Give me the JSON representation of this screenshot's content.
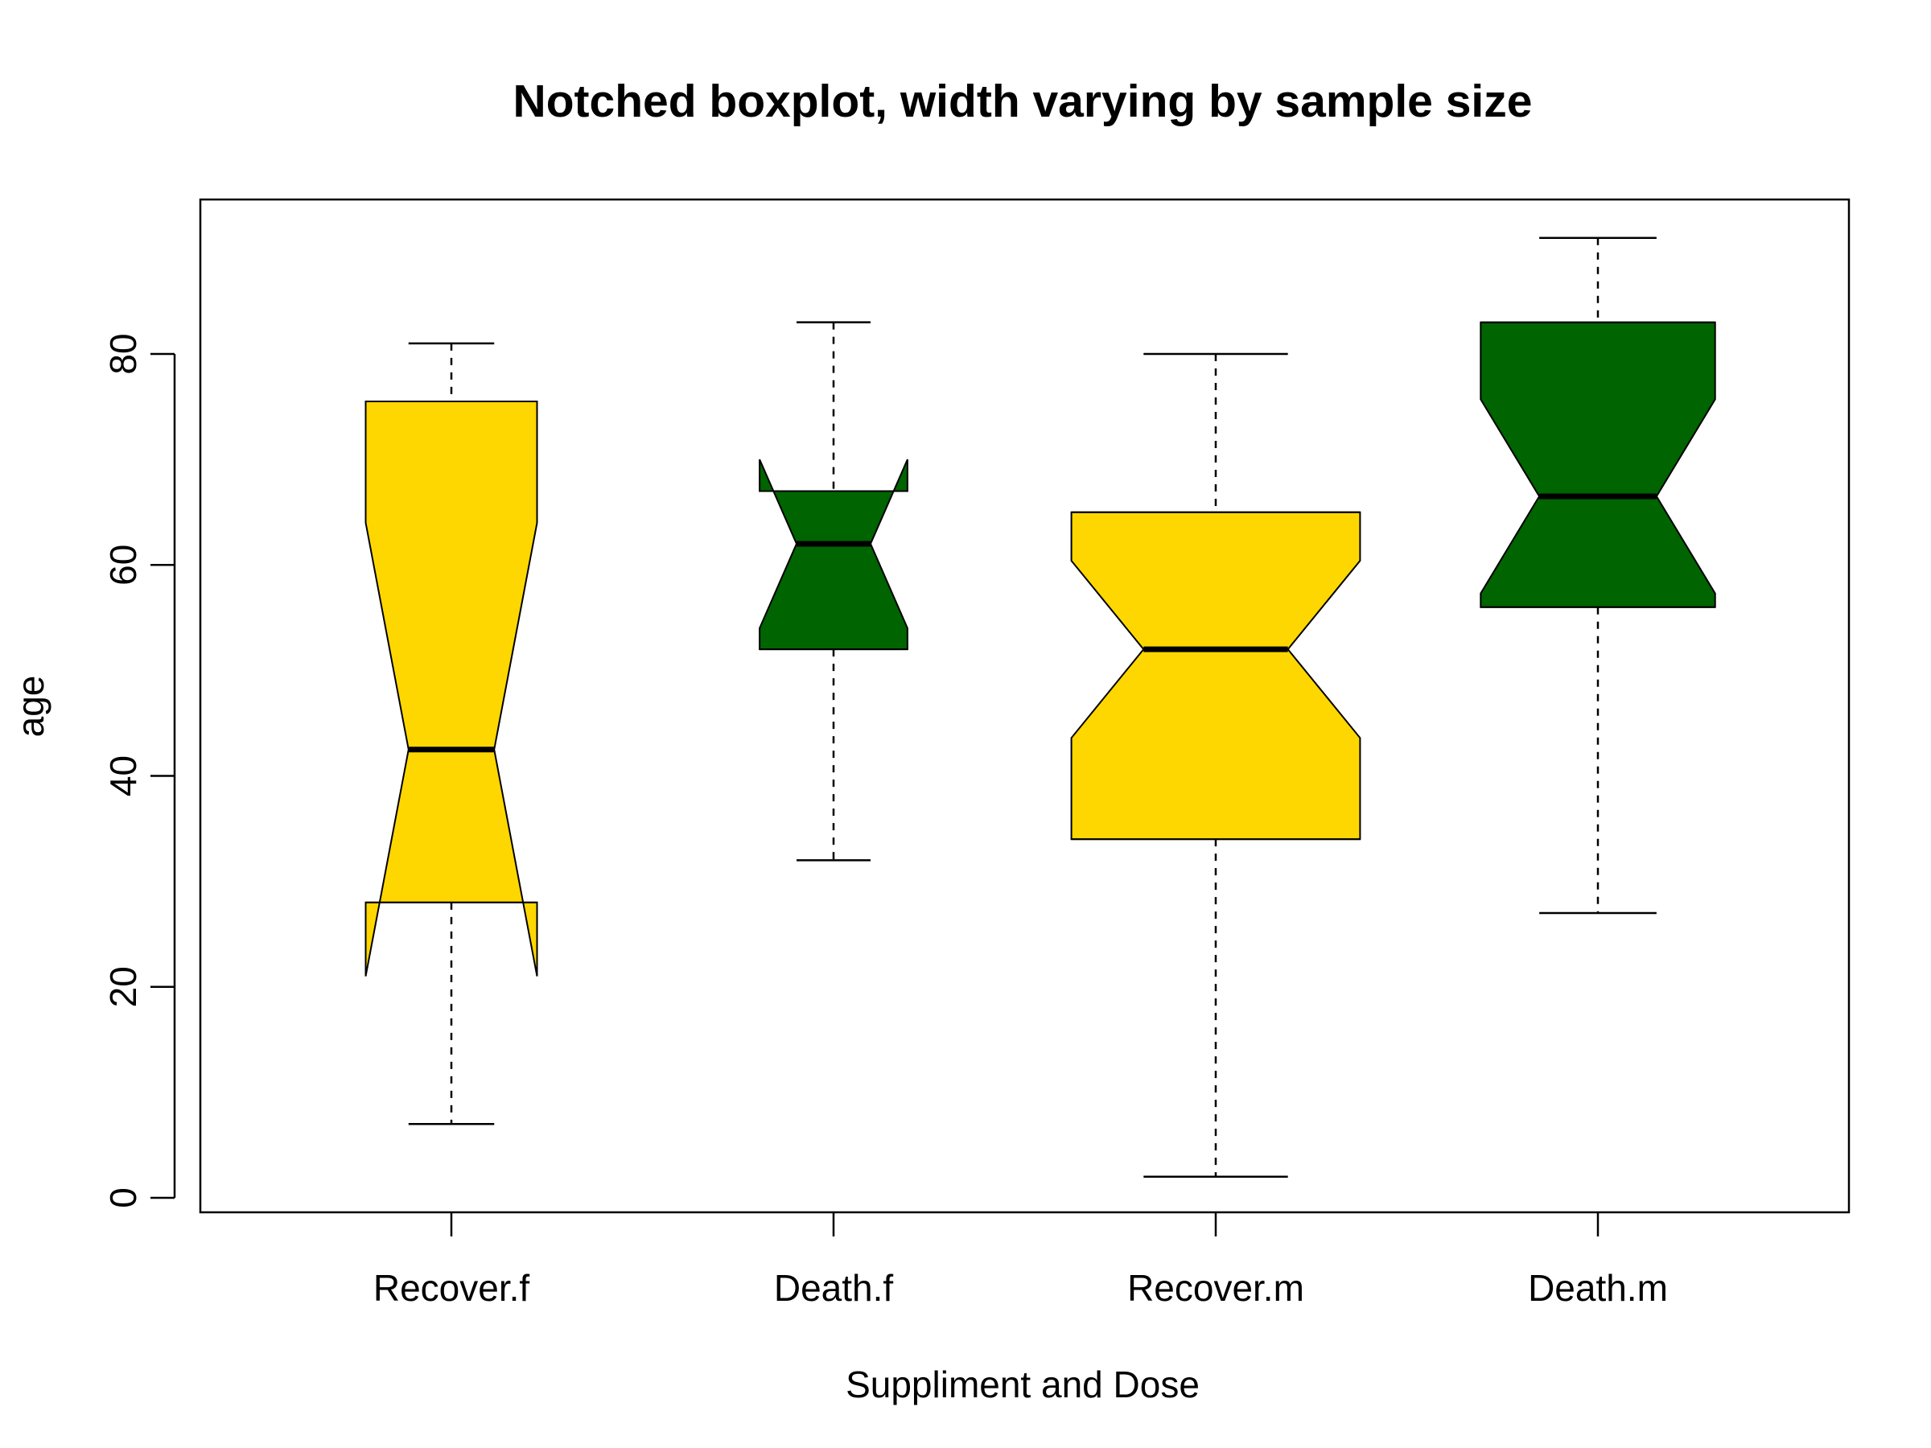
{
  "chart_data": {
    "type": "boxplot",
    "title": "Notched boxplot, width varying by sample size",
    "xlabel": "Suppliment and Dose",
    "ylabel": "age",
    "ylim": [
      -2,
      94
    ],
    "yticks": [
      0,
      20,
      40,
      60,
      80
    ],
    "categories": [
      "Recover.f",
      "Death.f",
      "Recover.m",
      "Death.m"
    ],
    "boxes": [
      {
        "category": "Recover.f",
        "whisker_low": 7,
        "q1": 28,
        "median": 42.5,
        "q3": 75.5,
        "whisker_high": 81,
        "notch_low": 21,
        "notch_high": 64,
        "relative_width": 0.95,
        "color": "#FFD700"
      },
      {
        "category": "Death.f",
        "whisker_low": 32,
        "q1": 52,
        "median": 62,
        "q3": 67,
        "whisker_high": 83,
        "notch_low": 54,
        "notch_high": 70,
        "relative_width": 0.82,
        "color": "#006400"
      },
      {
        "category": "Recover.m",
        "whisker_low": 2,
        "q1": 34,
        "median": 52,
        "q3": 65,
        "whisker_high": 80,
        "notch_low": 43.6,
        "notch_high": 60.4,
        "relative_width": 1.6,
        "color": "#FFD700"
      },
      {
        "category": "Death.m",
        "whisker_low": 27,
        "q1": 56,
        "median": 66.5,
        "q3": 83,
        "whisker_high": 91,
        "notch_low": 57.3,
        "notch_high": 75.7,
        "relative_width": 1.3,
        "color": "#006400"
      }
    ],
    "grid": false,
    "legend": "none"
  }
}
